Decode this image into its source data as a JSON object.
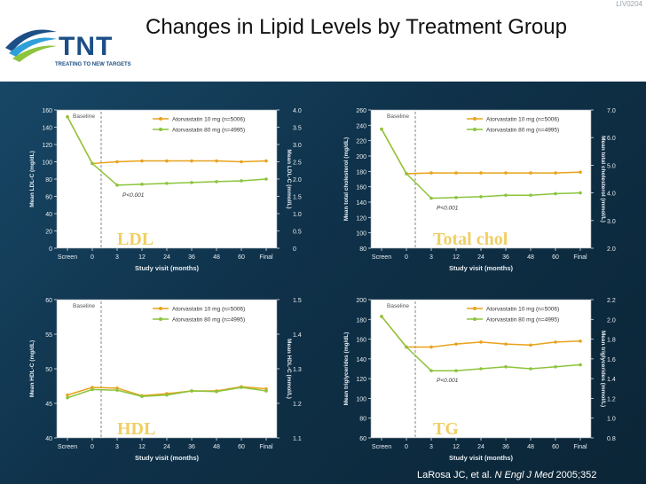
{
  "slide": {
    "title": "Changes in Lipid Levels by Treatment Group",
    "corner_code": "LIV0204",
    "logo_text": "TNT",
    "logo_tagline": "TREATING TO NEW TARGETS",
    "citation_prefix": "LaRosa JC, et al. ",
    "citation_journal": "N Engl J Med",
    "citation_suffix": " 2005;352"
  },
  "colors": {
    "atorva10": "#e8a21c",
    "atorva80": "#8cc43c",
    "plot_bg": "#ffffff",
    "panel_label": "#f0cf63"
  },
  "chart_data": [
    {
      "type": "line",
      "panel_label": "LDL",
      "categories": [
        "Screen",
        "0",
        "3",
        "12",
        "24",
        "36",
        "48",
        "60",
        "Final"
      ],
      "xlabel": "Study visit (months)",
      "ylabel": "Mean LDL-C (mg/dL)",
      "y2label": "Mean LDL-C (mmol/L)",
      "ylim": [
        0,
        160
      ],
      "yticks": [
        0,
        20,
        40,
        60,
        80,
        100,
        120,
        140,
        160
      ],
      "y2ticks": [
        "0",
        "0.5",
        "1.0",
        "1.5",
        "2.0",
        "2.5",
        "3.0",
        "3.5",
        "4.0"
      ],
      "baseline_label": "Baseline",
      "pvalue_label": "P<0.001",
      "series": [
        {
          "name": "Atorvastatin 10 mg (n=5006)",
          "values": [
            152,
            98,
            100,
            101,
            101,
            101,
            101,
            100,
            101
          ]
        },
        {
          "name": "Atorvastatin 80 mg (n=4995)",
          "values": [
            152,
            98,
            73,
            74,
            75,
            76,
            77,
            78,
            80
          ]
        }
      ]
    },
    {
      "type": "line",
      "panel_label": "Total chol",
      "categories": [
        "Screen",
        "0",
        "3",
        "12",
        "24",
        "36",
        "48",
        "60",
        "Final"
      ],
      "xlabel": "Study visit (months)",
      "ylabel": "Mean total cholesterol (mg/dL)",
      "y2label": "Mean total cholesterol (mmol/L)",
      "ylim": [
        80,
        260
      ],
      "yticks": [
        80,
        100,
        120,
        140,
        160,
        180,
        200,
        220,
        240,
        260
      ],
      "y2ticks": [
        "2.0",
        "3.0",
        "4.0",
        "5.0",
        "6.0",
        "7.0"
      ],
      "baseline_label": "Baseline",
      "pvalue_label": "P<0.001",
      "series": [
        {
          "name": "Atorvastatin 10 mg (n=5006)",
          "values": [
            235,
            177,
            178,
            178,
            178,
            178,
            178,
            178,
            179
          ]
        },
        {
          "name": "Atorvastatin 80 mg (n=4995)",
          "values": [
            235,
            177,
            145,
            146,
            147,
            149,
            149,
            151,
            152
          ]
        }
      ]
    },
    {
      "type": "line",
      "panel_label": "HDL",
      "categories": [
        "Screen",
        "0",
        "3",
        "12",
        "24",
        "36",
        "48",
        "60",
        "Final"
      ],
      "xlabel": "Study visit (months)",
      "ylabel": "Mean HDL-C (mg/dL)",
      "y2label": "Mean HDL-C (mmol/L)",
      "ylim": [
        40,
        60
      ],
      "yticks": [
        40,
        45,
        50,
        55,
        60
      ],
      "y2ticks": [
        "1.1",
        "1.2",
        "1.3",
        "1.4",
        "1.5"
      ],
      "baseline_label": "Baseline",
      "pvalue_label": "",
      "series": [
        {
          "name": "Atorvastatin 10 mg (n=5006)",
          "values": [
            46.2,
            47.3,
            47.2,
            46.1,
            46.4,
            46.8,
            46.8,
            47.4,
            47.1
          ]
        },
        {
          "name": "Atorvastatin 80 mg (n=4995)",
          "values": [
            45.8,
            47.0,
            46.9,
            46.0,
            46.2,
            46.8,
            46.7,
            47.3,
            46.8
          ]
        }
      ]
    },
    {
      "type": "line",
      "panel_label": "TG",
      "categories": [
        "Screen",
        "0",
        "3",
        "12",
        "24",
        "36",
        "48",
        "60",
        "Final"
      ],
      "xlabel": "Study visit (months)",
      "ylabel": "Mean triglycerides (mg/dL)",
      "y2label": "Mean triglycerides (mmol/L)",
      "ylim": [
        60,
        200
      ],
      "yticks": [
        60,
        80,
        100,
        120,
        140,
        160,
        180,
        200
      ],
      "y2ticks": [
        "0.8",
        "1.0",
        "1.2",
        "1.4",
        "1.6",
        "1.8",
        "2.0",
        "2.2"
      ],
      "baseline_label": "Baseline",
      "pvalue_label": "P<0.001",
      "series": [
        {
          "name": "Atorvastatin 10 mg (n=5006)",
          "values": [
            183,
            152,
            152,
            155,
            157,
            155,
            154,
            157,
            158
          ]
        },
        {
          "name": "Atorvastatin 80 mg (n=4995)",
          "values": [
            183,
            152,
            128,
            128,
            130,
            132,
            130,
            132,
            134
          ]
        }
      ]
    }
  ]
}
